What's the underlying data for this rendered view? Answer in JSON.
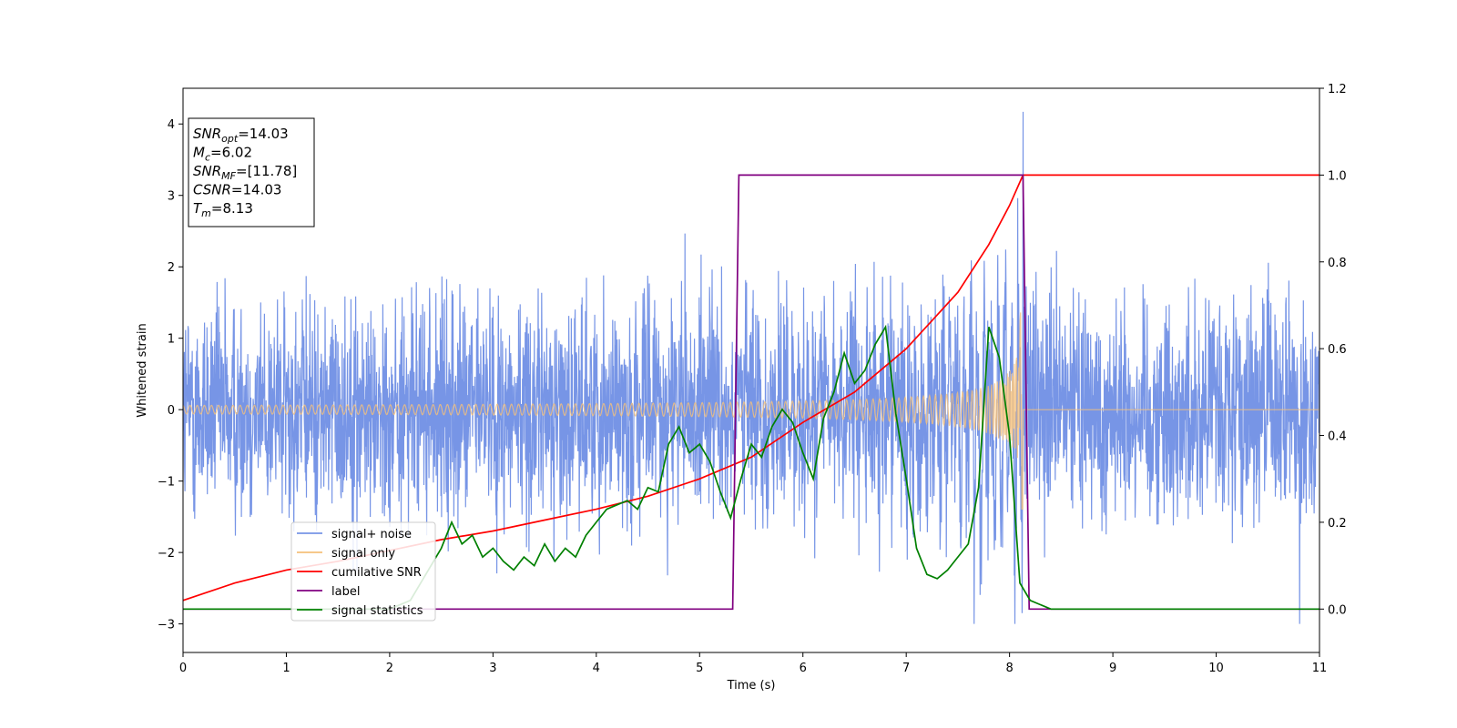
{
  "chart_data": {
    "type": "line",
    "xlabel": "Time (s)",
    "ylabel": "Whitened strain",
    "xlim": [
      0,
      11
    ],
    "ylim_left": [
      -3.4,
      4.5
    ],
    "ylim_right": [
      -0.1,
      1.2
    ],
    "xticks": [
      "0",
      "1",
      "2",
      "3",
      "4",
      "5",
      "6",
      "7",
      "8",
      "9",
      "10",
      "11"
    ],
    "yticks_left": [
      "−3",
      "−2",
      "−1",
      "0",
      "1",
      "2",
      "3",
      "4"
    ],
    "yticks_right": [
      "0.0",
      "0.2",
      "0.4",
      "0.6",
      "0.8",
      "1.0",
      "1.2"
    ],
    "grid": false,
    "legend_position": "lower-left",
    "annotation": {
      "lines": [
        {
          "name": "SNR",
          "sub": "opt",
          "value": "=14.03"
        },
        {
          "name": "M",
          "sub": "c",
          "value": "=6.02"
        },
        {
          "name": "SNR",
          "sub": "MF",
          "value": "=[11.78]"
        },
        {
          "name": "CSNR",
          "sub": "",
          "value": "=14.03"
        },
        {
          "name": "T",
          "sub": "m",
          "value": "=8.13"
        }
      ]
    },
    "series": [
      {
        "name": "signal+ noise",
        "color": "#7795e6",
        "axis": "left",
        "noise_std": 0.75,
        "merger_time": 8.13,
        "peak_value": 4.17
      },
      {
        "name": "signal only",
        "color": "#f5c07a",
        "axis": "left",
        "amplitude_start": 0.06,
        "amplitude_peak": 1.4,
        "merger_time": 8.13
      },
      {
        "name": "cumilative SNR",
        "color": "#ff0000",
        "axis": "right",
        "x": [
          0,
          0.5,
          1,
          1.5,
          2,
          2.5,
          3,
          3.5,
          4,
          4.5,
          5,
          5.5,
          6,
          6.5,
          7,
          7.5,
          7.8,
          8.0,
          8.13,
          11
        ],
        "y": [
          0.02,
          0.06,
          0.09,
          0.11,
          0.135,
          0.16,
          0.18,
          0.205,
          0.23,
          0.26,
          0.3,
          0.35,
          0.43,
          0.5,
          0.6,
          0.73,
          0.84,
          0.93,
          1.0,
          1.0
        ]
      },
      {
        "name": "label",
        "color": "#800080",
        "axis": "right",
        "x": [
          0,
          5.32,
          5.38,
          8.13,
          8.19,
          11
        ],
        "y": [
          0,
          0,
          1,
          1,
          0,
          0
        ]
      },
      {
        "name": "signal statistics",
        "color": "#008000",
        "axis": "right",
        "x": [
          0,
          2.0,
          2.2,
          2.4,
          2.5,
          2.6,
          2.7,
          2.8,
          2.9,
          3.0,
          3.1,
          3.2,
          3.3,
          3.4,
          3.5,
          3.6,
          3.7,
          3.8,
          3.9,
          4.0,
          4.1,
          4.2,
          4.3,
          4.4,
          4.5,
          4.6,
          4.7,
          4.8,
          4.9,
          5.0,
          5.1,
          5.2,
          5.3,
          5.4,
          5.5,
          5.6,
          5.7,
          5.8,
          5.9,
          6.0,
          6.1,
          6.2,
          6.3,
          6.4,
          6.5,
          6.6,
          6.7,
          6.8,
          6.9,
          7.0,
          7.1,
          7.2,
          7.3,
          7.4,
          7.5,
          7.6,
          7.7,
          7.8,
          7.9,
          8.0,
          8.1,
          8.2,
          8.4,
          11
        ],
        "y": [
          0,
          0,
          0.02,
          0.1,
          0.14,
          0.2,
          0.15,
          0.17,
          0.12,
          0.14,
          0.11,
          0.09,
          0.12,
          0.1,
          0.15,
          0.11,
          0.14,
          0.12,
          0.17,
          0.2,
          0.23,
          0.24,
          0.25,
          0.23,
          0.28,
          0.27,
          0.38,
          0.42,
          0.36,
          0.38,
          0.34,
          0.27,
          0.21,
          0.3,
          0.38,
          0.35,
          0.42,
          0.46,
          0.43,
          0.36,
          0.3,
          0.44,
          0.5,
          0.59,
          0.52,
          0.55,
          0.61,
          0.65,
          0.45,
          0.3,
          0.14,
          0.08,
          0.07,
          0.09,
          0.12,
          0.15,
          0.28,
          0.65,
          0.58,
          0.4,
          0.06,
          0.02,
          0.0,
          0.0
        ]
      }
    ]
  }
}
